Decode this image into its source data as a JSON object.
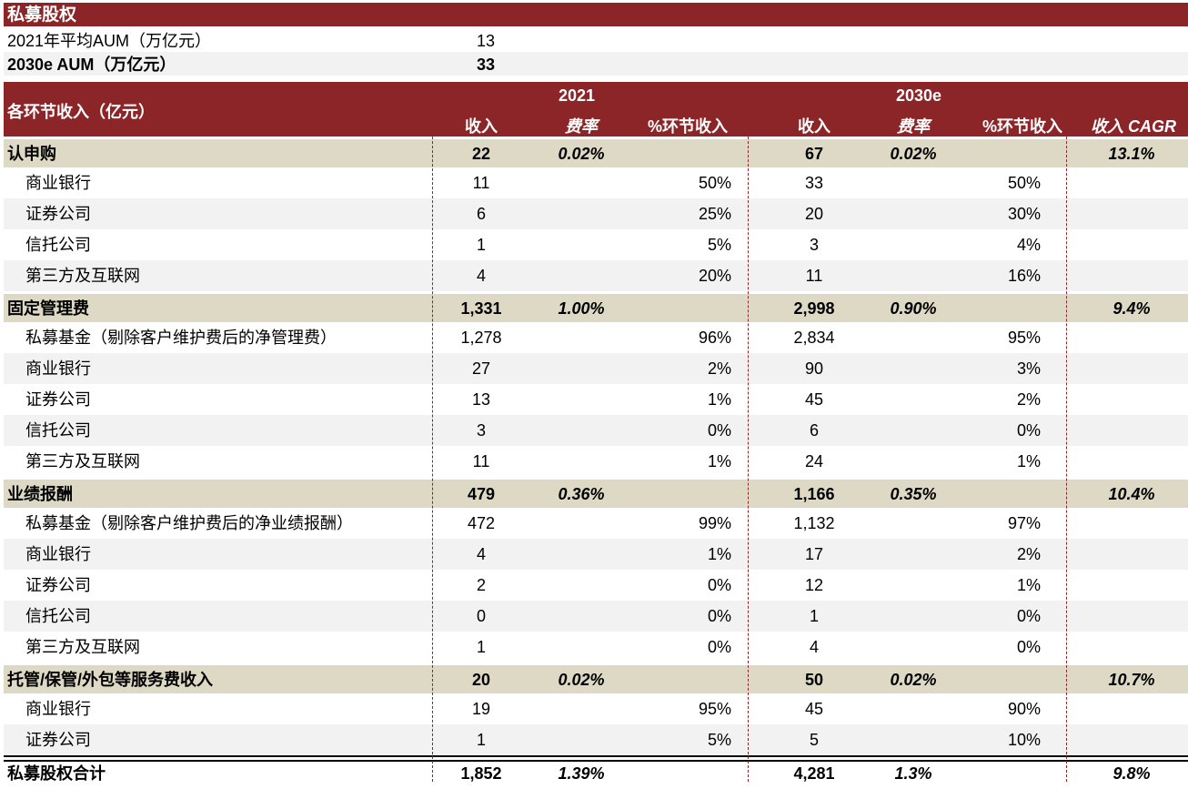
{
  "title": "私募股权",
  "aum": [
    {
      "label": "2021年平均AUM（万亿元）",
      "value": "13"
    },
    {
      "label": "2030e AUM（万亿元）",
      "value": "33"
    }
  ],
  "header": {
    "row_label": "各环节收入（亿元）",
    "y2021": "2021",
    "y2030": "2030e",
    "rev": "收入",
    "rate": "费率",
    "pct": "%环节收入",
    "cagr": "收入 CAGR"
  },
  "colors": {
    "header_bg": "#8b2527",
    "section_bg": "#ddd9c4",
    "stripe_bg": "#f2f2f2"
  },
  "rows": [
    {
      "type": "sec",
      "label": "认申购",
      "r21": "22",
      "f21": "0.02%",
      "p21": "",
      "r30": "67",
      "f30": "0.02%",
      "p30": "",
      "cagr": "13.1%"
    },
    {
      "type": "sub",
      "label": "商业银行",
      "r21": "11",
      "f21": "",
      "p21": "50%",
      "r30": "33",
      "f30": "",
      "p30": "50%",
      "cagr": ""
    },
    {
      "type": "sub",
      "label": "证券公司",
      "r21": "6",
      "f21": "",
      "p21": "25%",
      "r30": "20",
      "f30": "",
      "p30": "30%",
      "cagr": ""
    },
    {
      "type": "sub",
      "label": "信托公司",
      "r21": "1",
      "f21": "",
      "p21": "5%",
      "r30": "3",
      "f30": "",
      "p30": "4%",
      "cagr": ""
    },
    {
      "type": "sub",
      "label": "第三方及互联网",
      "r21": "4",
      "f21": "",
      "p21": "20%",
      "r30": "11",
      "f30": "",
      "p30": "16%",
      "cagr": ""
    },
    {
      "type": "sec",
      "label": "固定管理费",
      "r21": "1,331",
      "f21": "1.00%",
      "p21": "",
      "r30": "2,998",
      "f30": "0.90%",
      "p30": "",
      "cagr": "9.4%"
    },
    {
      "type": "sub",
      "label": "私募基金（剔除客户维护费后的净管理费）",
      "r21": "1,278",
      "f21": "",
      "p21": "96%",
      "r30": "2,834",
      "f30": "",
      "p30": "95%",
      "cagr": ""
    },
    {
      "type": "sub",
      "label": "商业银行",
      "r21": "27",
      "f21": "",
      "p21": "2%",
      "r30": "90",
      "f30": "",
      "p30": "3%",
      "cagr": ""
    },
    {
      "type": "sub",
      "label": "证券公司",
      "r21": "13",
      "f21": "",
      "p21": "1%",
      "r30": "45",
      "f30": "",
      "p30": "2%",
      "cagr": ""
    },
    {
      "type": "sub",
      "label": "信托公司",
      "r21": "3",
      "f21": "",
      "p21": "0%",
      "r30": "6",
      "f30": "",
      "p30": "0%",
      "cagr": ""
    },
    {
      "type": "sub",
      "label": "第三方及互联网",
      "r21": "11",
      "f21": "",
      "p21": "1%",
      "r30": "24",
      "f30": "",
      "p30": "1%",
      "cagr": ""
    },
    {
      "type": "sec",
      "label": "业绩报酬",
      "r21": "479",
      "f21": "0.36%",
      "p21": "",
      "r30": "1,166",
      "f30": "0.35%",
      "p30": "",
      "cagr": "10.4%"
    },
    {
      "type": "sub",
      "label": "私募基金（剔除客户维护费后的净业绩报酬）",
      "r21": "472",
      "f21": "",
      "p21": "99%",
      "r30": "1,132",
      "f30": "",
      "p30": "97%",
      "cagr": ""
    },
    {
      "type": "sub",
      "label": "商业银行",
      "r21": "4",
      "f21": "",
      "p21": "1%",
      "r30": "17",
      "f30": "",
      "p30": "2%",
      "cagr": ""
    },
    {
      "type": "sub",
      "label": "证券公司",
      "r21": "2",
      "f21": "",
      "p21": "0%",
      "r30": "12",
      "f30": "",
      "p30": "1%",
      "cagr": ""
    },
    {
      "type": "sub",
      "label": "信托公司",
      "r21": "0",
      "f21": "",
      "p21": "0%",
      "r30": "1",
      "f30": "",
      "p30": "0%",
      "cagr": ""
    },
    {
      "type": "sub",
      "label": "第三方及互联网",
      "r21": "1",
      "f21": "",
      "p21": "0%",
      "r30": "4",
      "f30": "",
      "p30": "0%",
      "cagr": ""
    },
    {
      "type": "sec",
      "label": "托管/保管/外包等服务费收入",
      "r21": "20",
      "f21": "0.02%",
      "p21": "",
      "r30": "50",
      "f30": "0.02%",
      "p30": "",
      "cagr": "10.7%"
    },
    {
      "type": "sub",
      "label": "商业银行",
      "r21": "19",
      "f21": "",
      "p21": "95%",
      "r30": "45",
      "f30": "",
      "p30": "90%",
      "cagr": ""
    },
    {
      "type": "sub",
      "label": "证券公司",
      "r21": "1",
      "f21": "",
      "p21": "5%",
      "r30": "5",
      "f30": "",
      "p30": "10%",
      "cagr": ""
    }
  ],
  "total": {
    "label": "私募股权合计",
    "r21": "1,852",
    "f21": "1.39%",
    "r30": "4,281",
    "f30": "1.3%",
    "cagr": "9.8%"
  }
}
